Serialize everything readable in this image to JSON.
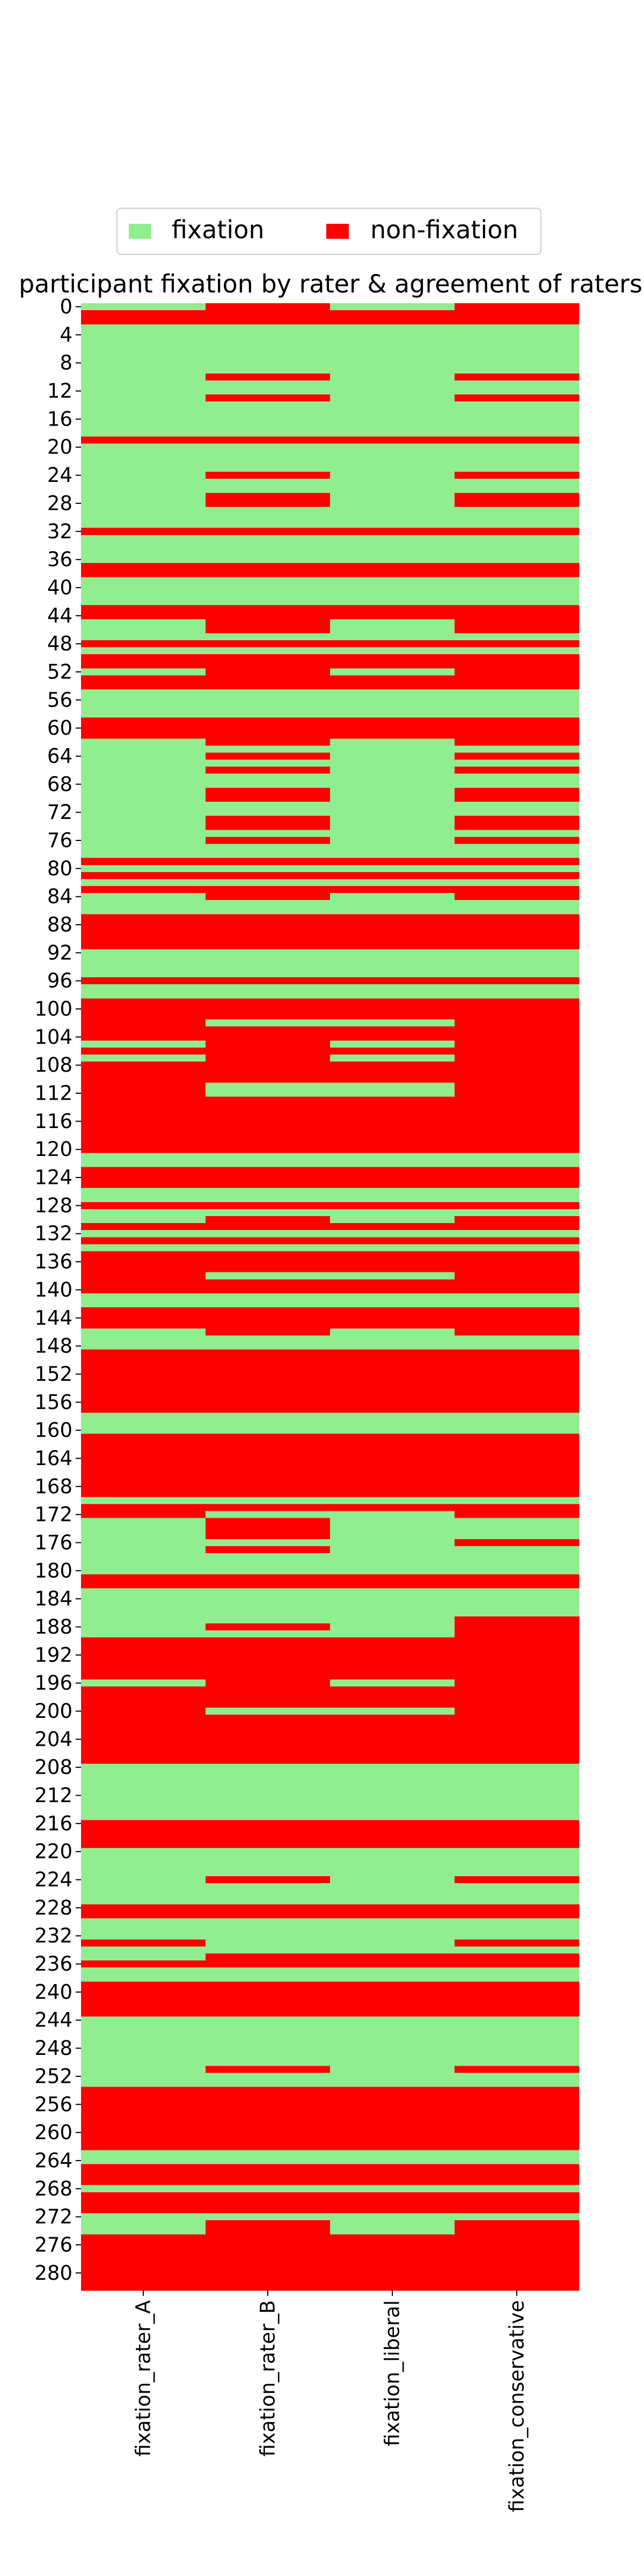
{
  "chart_data": {
    "type": "heatmap",
    "title": "participant fixation by rater & agreement of raters",
    "legend": {
      "placement": "top-center",
      "entries": [
        {
          "label": "fixation",
          "value": 1,
          "color": "#90ee90"
        },
        {
          "label": "non-fixation",
          "value": 0,
          "color": "#ff0000"
        }
      ]
    },
    "columns": [
      "fixation_rater_A",
      "fixation_rater_B",
      "fixation_liberal",
      "fixation_conservative"
    ],
    "y_tick_labels": [
      "0",
      "4",
      "8",
      "12",
      "16",
      "20",
      "24",
      "28",
      "32",
      "36",
      "40",
      "44",
      "48",
      "52",
      "56",
      "60",
      "64",
      "68",
      "72",
      "76",
      "80",
      "84",
      "88",
      "92",
      "96",
      "100",
      "104",
      "108",
      "112",
      "116",
      "120",
      "124",
      "128",
      "132",
      "136",
      "140",
      "144",
      "148",
      "152",
      "156",
      "160",
      "164",
      "168",
      "172",
      "176",
      "180",
      "184",
      "188",
      "192",
      "196",
      "200",
      "204",
      "208",
      "212",
      "216",
      "220",
      "224",
      "228",
      "232",
      "236",
      "240",
      "244",
      "248",
      "252",
      "256",
      "260",
      "264",
      "268",
      "272",
      "276",
      "280"
    ],
    "row_index": {
      "first": 0,
      "last": 282
    },
    "cell_values_note": "values[i] = [fixation_rater_A, fixation_rater_B, fixation_liberal, fixation_conservative] for row i; 1 = fixation, 0 = non-fixation",
    "values": [
      [
        1,
        0,
        1,
        0
      ],
      [
        0,
        0,
        0,
        0
      ],
      [
        0,
        0,
        0,
        0
      ],
      [
        1,
        1,
        1,
        1
      ],
      [
        1,
        1,
        1,
        1
      ],
      [
        1,
        1,
        1,
        1
      ],
      [
        1,
        1,
        1,
        1
      ],
      [
        1,
        1,
        1,
        1
      ],
      [
        1,
        1,
        1,
        1
      ],
      [
        1,
        1,
        1,
        1
      ],
      [
        1,
        0,
        1,
        0
      ],
      [
        1,
        1,
        1,
        1
      ],
      [
        1,
        1,
        1,
        1
      ],
      [
        1,
        0,
        1,
        0
      ],
      [
        1,
        1,
        1,
        1
      ],
      [
        1,
        1,
        1,
        1
      ],
      [
        1,
        1,
        1,
        1
      ],
      [
        1,
        1,
        1,
        1
      ],
      [
        1,
        1,
        1,
        1
      ],
      [
        0,
        0,
        0,
        0
      ],
      [
        1,
        1,
        1,
        1
      ],
      [
        1,
        1,
        1,
        1
      ],
      [
        1,
        1,
        1,
        1
      ],
      [
        1,
        1,
        1,
        1
      ],
      [
        1,
        0,
        1,
        0
      ],
      [
        1,
        1,
        1,
        1
      ],
      [
        1,
        1,
        1,
        1
      ],
      [
        1,
        0,
        1,
        0
      ],
      [
        1,
        0,
        1,
        0
      ],
      [
        1,
        1,
        1,
        1
      ],
      [
        1,
        1,
        1,
        1
      ],
      [
        1,
        1,
        1,
        1
      ],
      [
        0,
        0,
        0,
        0
      ],
      [
        1,
        1,
        1,
        1
      ],
      [
        1,
        1,
        1,
        1
      ],
      [
        1,
        1,
        1,
        1
      ],
      [
        1,
        1,
        1,
        1
      ],
      [
        0,
        0,
        0,
        0
      ],
      [
        0,
        0,
        0,
        0
      ],
      [
        1,
        1,
        1,
        1
      ],
      [
        1,
        1,
        1,
        1
      ],
      [
        1,
        1,
        1,
        1
      ],
      [
        1,
        1,
        1,
        1
      ],
      [
        0,
        0,
        0,
        0
      ],
      [
        0,
        0,
        0,
        0
      ],
      [
        1,
        0,
        1,
        0
      ],
      [
        1,
        0,
        1,
        0
      ],
      [
        1,
        1,
        1,
        1
      ],
      [
        0,
        0,
        0,
        0
      ],
      [
        1,
        1,
        1,
        1
      ],
      [
        0,
        0,
        0,
        0
      ],
      [
        0,
        0,
        0,
        0
      ],
      [
        1,
        0,
        1,
        0
      ],
      [
        0,
        0,
        0,
        0
      ],
      [
        0,
        0,
        0,
        0
      ],
      [
        1,
        1,
        1,
        1
      ],
      [
        1,
        1,
        1,
        1
      ],
      [
        1,
        1,
        1,
        1
      ],
      [
        1,
        1,
        1,
        1
      ],
      [
        0,
        0,
        0,
        0
      ],
      [
        0,
        0,
        0,
        0
      ],
      [
        0,
        0,
        0,
        0
      ],
      [
        1,
        0,
        1,
        0
      ],
      [
        1,
        1,
        1,
        1
      ],
      [
        1,
        0,
        1,
        0
      ],
      [
        1,
        1,
        1,
        1
      ],
      [
        1,
        0,
        1,
        0
      ],
      [
        1,
        1,
        1,
        1
      ],
      [
        1,
        1,
        1,
        1
      ],
      [
        1,
        0,
        1,
        0
      ],
      [
        1,
        0,
        1,
        0
      ],
      [
        1,
        1,
        1,
        1
      ],
      [
        1,
        1,
        1,
        1
      ],
      [
        1,
        0,
        1,
        0
      ],
      [
        1,
        0,
        1,
        0
      ],
      [
        1,
        1,
        1,
        1
      ],
      [
        1,
        0,
        1,
        0
      ],
      [
        1,
        1,
        1,
        1
      ],
      [
        1,
        1,
        1,
        1
      ],
      [
        0,
        0,
        0,
        0
      ],
      [
        1,
        1,
        1,
        1
      ],
      [
        0,
        0,
        0,
        0
      ],
      [
        1,
        1,
        1,
        1
      ],
      [
        0,
        0,
        0,
        0
      ],
      [
        1,
        0,
        1,
        0
      ],
      [
        1,
        1,
        1,
        1
      ],
      [
        1,
        1,
        1,
        1
      ],
      [
        0,
        0,
        0,
        0
      ],
      [
        0,
        0,
        0,
        0
      ],
      [
        0,
        0,
        0,
        0
      ],
      [
        0,
        0,
        0,
        0
      ],
      [
        0,
        0,
        0,
        0
      ],
      [
        1,
        1,
        1,
        1
      ],
      [
        1,
        1,
        1,
        1
      ],
      [
        1,
        1,
        1,
        1
      ],
      [
        1,
        1,
        1,
        1
      ],
      [
        0,
        0,
        0,
        0
      ],
      [
        1,
        1,
        1,
        1
      ],
      [
        1,
        1,
        1,
        1
      ],
      [
        0,
        0,
        0,
        0
      ],
      [
        0,
        0,
        0,
        0
      ],
      [
        0,
        0,
        0,
        0
      ],
      [
        0,
        1,
        1,
        0
      ],
      [
        0,
        0,
        0,
        0
      ],
      [
        0,
        0,
        0,
        0
      ],
      [
        1,
        0,
        1,
        0
      ],
      [
        0,
        0,
        0,
        0
      ],
      [
        1,
        0,
        1,
        0
      ],
      [
        0,
        0,
        0,
        0
      ],
      [
        0,
        0,
        0,
        0
      ],
      [
        0,
        0,
        0,
        0
      ],
      [
        0,
        1,
        1,
        0
      ],
      [
        0,
        1,
        1,
        0
      ],
      [
        0,
        0,
        0,
        0
      ],
      [
        0,
        0,
        0,
        0
      ],
      [
        0,
        0,
        0,
        0
      ],
      [
        0,
        0,
        0,
        0
      ],
      [
        0,
        0,
        0,
        0
      ],
      [
        0,
        0,
        0,
        0
      ],
      [
        0,
        0,
        0,
        0
      ],
      [
        0,
        0,
        0,
        0
      ],
      [
        1,
        1,
        1,
        1
      ],
      [
        1,
        1,
        1,
        1
      ],
      [
        0,
        0,
        0,
        0
      ],
      [
        0,
        0,
        0,
        0
      ],
      [
        0,
        0,
        0,
        0
      ],
      [
        1,
        1,
        1,
        1
      ],
      [
        1,
        1,
        1,
        1
      ],
      [
        0,
        0,
        0,
        0
      ],
      [
        1,
        1,
        1,
        1
      ],
      [
        1,
        0,
        1,
        0
      ],
      [
        0,
        0,
        0,
        0
      ],
      [
        1,
        1,
        1,
        1
      ],
      [
        0,
        0,
        0,
        0
      ],
      [
        1,
        1,
        1,
        1
      ],
      [
        0,
        0,
        0,
        0
      ],
      [
        0,
        0,
        0,
        0
      ],
      [
        0,
        0,
        0,
        0
      ],
      [
        0,
        1,
        1,
        0
      ],
      [
        0,
        0,
        0,
        0
      ],
      [
        0,
        0,
        0,
        0
      ],
      [
        1,
        1,
        1,
        1
      ],
      [
        1,
        1,
        1,
        1
      ],
      [
        0,
        0,
        0,
        0
      ],
      [
        0,
        0,
        0,
        0
      ],
      [
        0,
        0,
        0,
        0
      ],
      [
        1,
        0,
        1,
        0
      ],
      [
        1,
        1,
        1,
        1
      ],
      [
        1,
        1,
        1,
        1
      ],
      [
        0,
        0,
        0,
        0
      ],
      [
        0,
        0,
        0,
        0
      ],
      [
        0,
        0,
        0,
        0
      ],
      [
        0,
        0,
        0,
        0
      ],
      [
        0,
        0,
        0,
        0
      ],
      [
        0,
        0,
        0,
        0
      ],
      [
        0,
        0,
        0,
        0
      ],
      [
        0,
        0,
        0,
        0
      ],
      [
        0,
        0,
        0,
        0
      ],
      [
        1,
        1,
        1,
        1
      ],
      [
        1,
        1,
        1,
        1
      ],
      [
        1,
        1,
        1,
        1
      ],
      [
        0,
        0,
        0,
        0
      ],
      [
        0,
        0,
        0,
        0
      ],
      [
        0,
        0,
        0,
        0
      ],
      [
        0,
        0,
        0,
        0
      ],
      [
        0,
        0,
        0,
        0
      ],
      [
        0,
        0,
        0,
        0
      ],
      [
        0,
        0,
        0,
        0
      ],
      [
        0,
        0,
        0,
        0
      ],
      [
        0,
        0,
        0,
        0
      ],
      [
        1,
        1,
        1,
        1
      ],
      [
        0,
        0,
        0,
        0
      ],
      [
        0,
        1,
        1,
        0
      ],
      [
        1,
        0,
        1,
        1
      ],
      [
        1,
        0,
        1,
        1
      ],
      [
        1,
        0,
        1,
        1
      ],
      [
        1,
        1,
        1,
        0
      ],
      [
        1,
        0,
        1,
        1
      ],
      [
        1,
        1,
        1,
        1
      ],
      [
        1,
        1,
        1,
        1
      ],
      [
        1,
        1,
        1,
        1
      ],
      [
        0,
        0,
        0,
        0
      ],
      [
        0,
        0,
        0,
        0
      ],
      [
        1,
        1,
        1,
        1
      ],
      [
        1,
        1,
        1,
        1
      ],
      [
        1,
        1,
        1,
        1
      ],
      [
        1,
        1,
        1,
        1
      ],
      [
        1,
        1,
        1,
        0
      ],
      [
        1,
        0,
        1,
        0
      ],
      [
        1,
        1,
        1,
        0
      ],
      [
        0,
        0,
        0,
        0
      ],
      [
        0,
        0,
        0,
        0
      ],
      [
        0,
        0,
        0,
        0
      ],
      [
        0,
        0,
        0,
        0
      ],
      [
        0,
        0,
        0,
        0
      ],
      [
        0,
        0,
        0,
        0
      ],
      [
        1,
        0,
        1,
        0
      ],
      [
        0,
        0,
        0,
        0
      ],
      [
        0,
        0,
        0,
        0
      ],
      [
        0,
        0,
        0,
        0
      ],
      [
        0,
        1,
        1,
        0
      ],
      [
        0,
        0,
        0,
        0
      ],
      [
        0,
        0,
        0,
        0
      ],
      [
        0,
        0,
        0,
        0
      ],
      [
        0,
        0,
        0,
        0
      ],
      [
        0,
        0,
        0,
        0
      ],
      [
        0,
        0,
        0,
        0
      ],
      [
        0,
        0,
        0,
        0
      ],
      [
        1,
        1,
        1,
        1
      ],
      [
        1,
        1,
        1,
        1
      ],
      [
        1,
        1,
        1,
        1
      ],
      [
        1,
        1,
        1,
        1
      ],
      [
        1,
        1,
        1,
        1
      ],
      [
        1,
        1,
        1,
        1
      ],
      [
        1,
        1,
        1,
        1
      ],
      [
        1,
        1,
        1,
        1
      ],
      [
        0,
        0,
        0,
        0
      ],
      [
        0,
        0,
        0,
        0
      ],
      [
        0,
        0,
        0,
        0
      ],
      [
        0,
        0,
        0,
        0
      ],
      [
        1,
        1,
        1,
        1
      ],
      [
        1,
        1,
        1,
        1
      ],
      [
        1,
        1,
        1,
        1
      ],
      [
        1,
        1,
        1,
        1
      ],
      [
        1,
        0,
        1,
        0
      ],
      [
        1,
        1,
        1,
        1
      ],
      [
        1,
        1,
        1,
        1
      ],
      [
        1,
        1,
        1,
        1
      ],
      [
        0,
        0,
        0,
        0
      ],
      [
        0,
        0,
        0,
        0
      ],
      [
        1,
        1,
        1,
        1
      ],
      [
        1,
        1,
        1,
        1
      ],
      [
        1,
        1,
        1,
        1
      ],
      [
        0,
        1,
        1,
        0
      ],
      [
        1,
        1,
        1,
        1
      ],
      [
        1,
        0,
        0,
        0
      ],
      [
        0,
        0,
        0,
        0
      ],
      [
        1,
        1,
        1,
        1
      ],
      [
        1,
        1,
        1,
        1
      ],
      [
        0,
        0,
        0,
        0
      ],
      [
        0,
        0,
        0,
        0
      ],
      [
        0,
        0,
        0,
        0
      ],
      [
        0,
        0,
        0,
        0
      ],
      [
        0,
        0,
        0,
        0
      ],
      [
        1,
        1,
        1,
        1
      ],
      [
        1,
        1,
        1,
        1
      ],
      [
        1,
        1,
        1,
        1
      ],
      [
        1,
        1,
        1,
        1
      ],
      [
        1,
        1,
        1,
        1
      ],
      [
        1,
        1,
        1,
        1
      ],
      [
        1,
        1,
        1,
        1
      ],
      [
        1,
        0,
        1,
        0
      ],
      [
        1,
        1,
        1,
        1
      ],
      [
        1,
        1,
        1,
        1
      ],
      [
        0,
        0,
        0,
        0
      ],
      [
        0,
        0,
        0,
        0
      ],
      [
        0,
        0,
        0,
        0
      ],
      [
        0,
        0,
        0,
        0
      ],
      [
        0,
        0,
        0,
        0
      ],
      [
        0,
        0,
        0,
        0
      ],
      [
        0,
        0,
        0,
        0
      ],
      [
        0,
        0,
        0,
        0
      ],
      [
        0,
        0,
        0,
        0
      ],
      [
        1,
        1,
        1,
        1
      ],
      [
        1,
        1,
        1,
        1
      ],
      [
        0,
        0,
        0,
        0
      ],
      [
        0,
        0,
        0,
        0
      ],
      [
        0,
        0,
        0,
        0
      ],
      [
        1,
        1,
        1,
        1
      ],
      [
        0,
        0,
        0,
        0
      ],
      [
        0,
        0,
        0,
        0
      ],
      [
        0,
        0,
        0,
        0
      ],
      [
        1,
        1,
        1,
        1
      ],
      [
        1,
        0,
        1,
        0
      ],
      [
        1,
        0,
        1,
        0
      ],
      [
        0,
        0,
        0,
        0
      ],
      [
        0,
        0,
        0,
        0
      ],
      [
        0,
        0,
        0,
        0
      ],
      [
        0,
        0,
        0,
        0
      ],
      [
        0,
        0,
        0,
        0
      ],
      [
        0,
        0,
        0,
        0
      ],
      [
        0,
        0,
        0,
        0
      ],
      [
        0,
        0,
        0,
        0
      ]
    ]
  }
}
